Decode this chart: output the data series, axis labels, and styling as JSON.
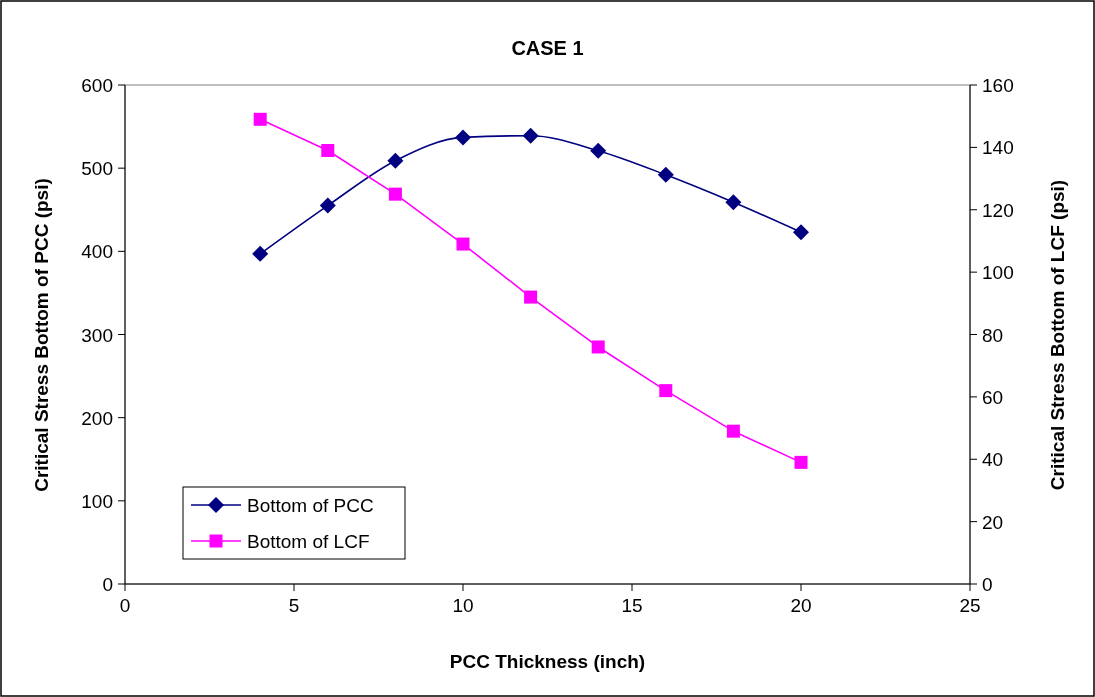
{
  "chart_data": {
    "type": "line",
    "title": "CASE 1",
    "xlabel": "PCC Thickness (inch)",
    "ylabel": "Critical Stress Bottom of PCC (psi)",
    "y2label": "Critical Stress Bottom of LCF (psi)",
    "x": [
      4,
      6,
      8,
      10,
      12,
      14,
      16,
      18,
      20
    ],
    "series": [
      {
        "name": "Bottom of PCC",
        "color": "#000080",
        "marker": "diamond",
        "values": [
          397,
          455,
          509,
          537,
          539,
          521,
          492,
          459,
          423
        ]
      },
      {
        "name": "Bottom of LCF",
        "color": "#ff00ff",
        "marker": "square",
        "axis": "y2",
        "values": [
          149,
          139,
          125,
          109,
          92,
          76,
          62,
          49,
          39
        ]
      }
    ],
    "xlim": [
      0,
      25
    ],
    "xticks": [
      0,
      5,
      10,
      15,
      20,
      25
    ],
    "ylim": [
      0,
      600
    ],
    "yticks": [
      0,
      100,
      200,
      300,
      400,
      500,
      600
    ],
    "y2lim": [
      0,
      160
    ],
    "y2ticks": [
      0,
      20,
      40,
      60,
      80,
      100,
      120,
      140,
      160
    ],
    "grid": false,
    "legend": "bottom left",
    "line_style": "solid"
  }
}
